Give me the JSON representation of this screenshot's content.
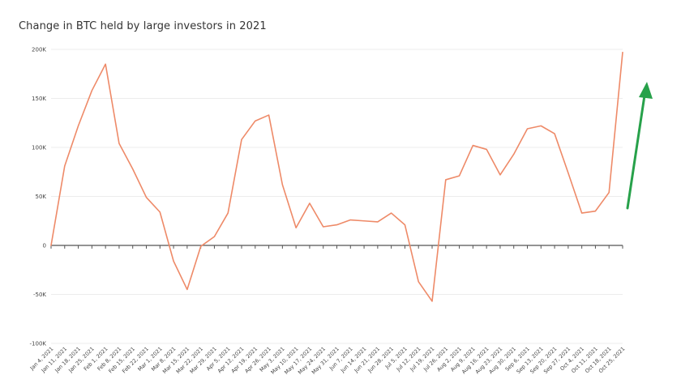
{
  "chart_data": {
    "type": "line",
    "title": "Change in BTC held by large investors in 2021",
    "xlabel": "",
    "ylabel": "",
    "ylim": [
      -100000,
      200000
    ],
    "yticks": [
      {
        "value": 200000,
        "label": "200K"
      },
      {
        "value": 150000,
        "label": "150K"
      },
      {
        "value": 100000,
        "label": "100K"
      },
      {
        "value": 50000,
        "label": "50K"
      },
      {
        "value": 0,
        "label": "0"
      },
      {
        "value": -50000,
        "label": "-50K"
      },
      {
        "value": -100000,
        "label": "-100K"
      }
    ],
    "grid": true,
    "legend": "none",
    "categories": [
      "Jan 4, 2021",
      "Jan 11, 2021",
      "Jan 18, 2021",
      "Jan 25, 2021",
      "Feb 1, 2021",
      "Feb 8, 2021",
      "Feb 15, 2021",
      "Feb 22, 2021",
      "Mar 1, 2021",
      "Mar 8, 2021",
      "Mar 15, 2021",
      "Mar 22, 2021",
      "Mar 29, 2021",
      "Apr 5, 2021",
      "Apr 12, 2021",
      "Apr 19, 2021",
      "Apr 26, 2021",
      "May 3, 2021",
      "May 10, 2021",
      "May 17, 2021",
      "May 24, 2021",
      "May 31, 2021",
      "Jun 7, 2021",
      "Jun 14, 2021",
      "Jun 21, 2021",
      "Jun 28, 2021",
      "Jul 5, 2021",
      "Jul 12, 2021",
      "Jul 19, 2021",
      "Jul 26, 2021",
      "Aug 2, 2021",
      "Aug 9, 2021",
      "Aug 16, 2021",
      "Aug 23, 2021",
      "Aug 30, 2021",
      "Sep 6, 2021",
      "Sep 13, 2021",
      "Sep 20, 2021",
      "Sep 27, 2021",
      "Oct 4, 2021",
      "Oct 11, 2021",
      "Oct 18, 2021",
      "Oct 25, 2021"
    ],
    "series": [
      {
        "color": "#ee8a68",
        "values": [
          0,
          81000,
          122000,
          158000,
          185000,
          104000,
          78000,
          49000,
          34000,
          -16000,
          -45000,
          -1000,
          9000,
          33000,
          108000,
          127000,
          133000,
          62000,
          18000,
          43000,
          19000,
          21000,
          26000,
          25000,
          24000,
          33000,
          21000,
          -37000,
          -57000,
          67000,
          71000,
          102000,
          98000,
          72000,
          93000,
          119000,
          122000,
          114000,
          74000,
          33000,
          35000,
          54000,
          197000
        ]
      }
    ],
    "annotation": {
      "type": "arrow",
      "color": "#27a14a"
    }
  }
}
